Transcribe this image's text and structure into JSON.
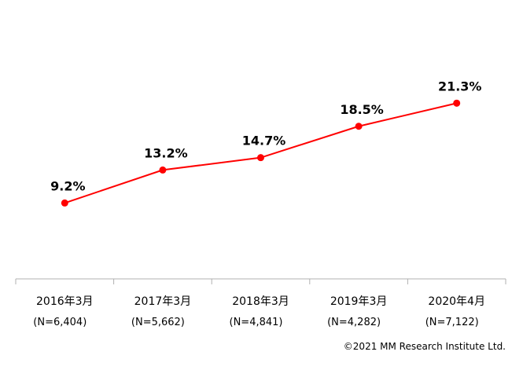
{
  "chart_data": {
    "type": "line",
    "categories": [
      "2016年3月",
      "2017年3月",
      "2018年3月",
      "2019年3月",
      "2020年4月"
    ],
    "sample_sizes": [
      "(N=6,404)",
      "(N=5,662)",
      "(N=4,841)",
      "(N=4,282)",
      "(N=7,122)"
    ],
    "values": [
      9.2,
      13.2,
      14.7,
      18.5,
      21.3
    ],
    "value_labels": [
      "9.2%",
      "13.2%",
      "14.7%",
      "18.5%",
      "21.3%"
    ],
    "ylim": [
      0,
      30
    ],
    "line_color": "#ff0000",
    "grid": false
  },
  "copyright": "©2021 MM Research Institute Ltd."
}
